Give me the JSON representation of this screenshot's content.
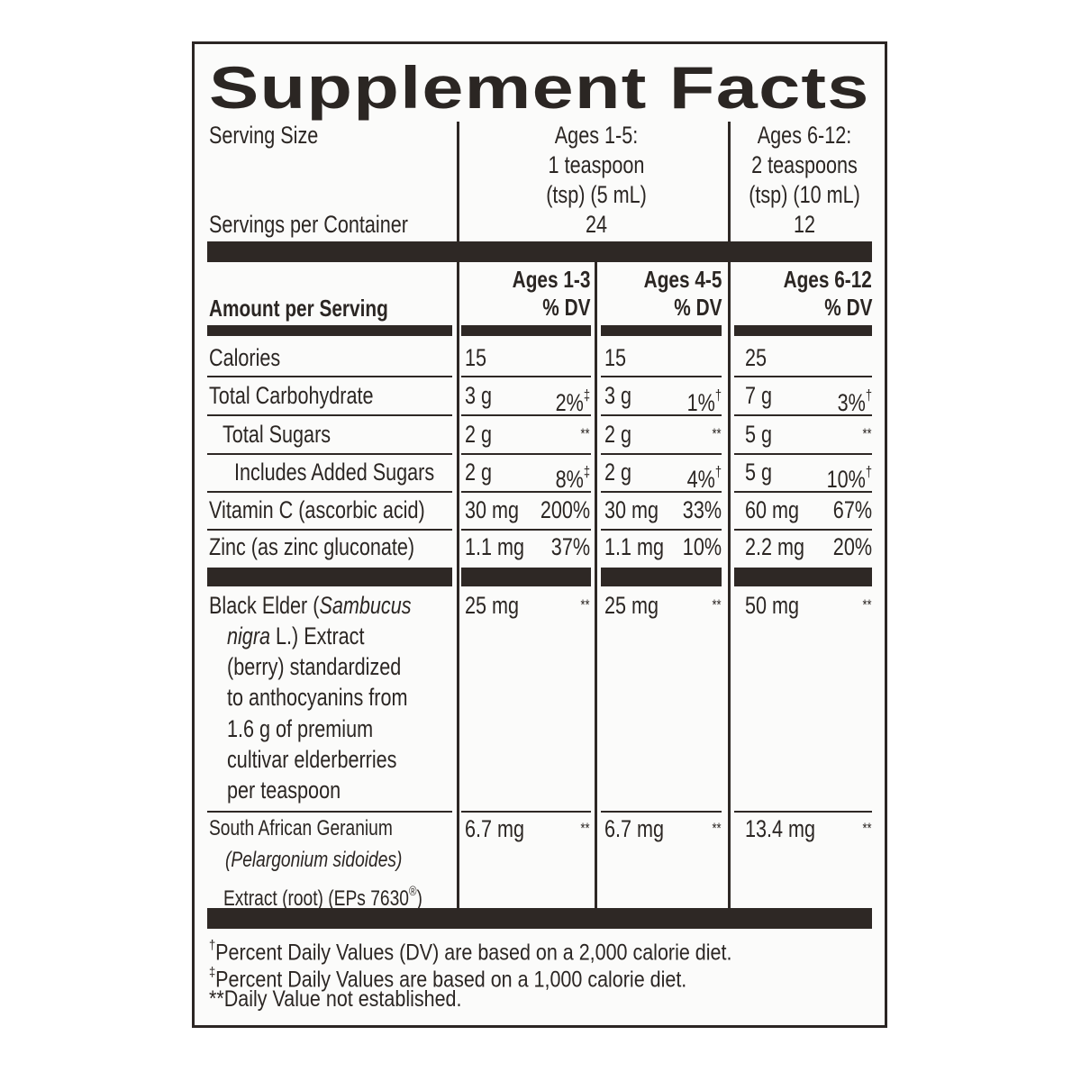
{
  "title": "Supplement Facts",
  "serving": {
    "size_label": "Serving Size",
    "servings_label": "Servings per Container",
    "columns": [
      {
        "size": [
          "Ages 1-5:",
          "1 teaspoon",
          "(tsp) (5 mL)"
        ],
        "servings": "24"
      },
      {
        "size": [
          "Ages 6-12:",
          "2 teaspoons",
          "(tsp) (10 mL)"
        ],
        "servings": "12"
      }
    ]
  },
  "amount_header": {
    "label": "Amount per Serving",
    "columns": [
      {
        "age": "Ages 1-3",
        "dv": "% DV"
      },
      {
        "age": "Ages 4-5",
        "dv": "% DV"
      },
      {
        "age": "Ages 6-12",
        "dv": "% DV"
      }
    ]
  },
  "rows": [
    {
      "name": [
        [
          {
            "text": "Calories"
          }
        ]
      ],
      "cells": [
        {
          "amount": "15"
        },
        {
          "amount": "15"
        },
        {
          "amount": "25"
        }
      ]
    },
    {
      "name": [
        [
          {
            "text": "Total Carbohydrate"
          }
        ]
      ],
      "cells": [
        {
          "amount": "3 g",
          "dv": "2%",
          "note": "‡"
        },
        {
          "amount": "3 g",
          "dv": "1%",
          "note": "†"
        },
        {
          "amount": "7 g",
          "dv": "3%",
          "note": "†"
        }
      ]
    },
    {
      "name": [
        [
          {
            "text": "Total Sugars"
          }
        ]
      ],
      "cells": [
        {
          "amount": "2 g",
          "dv": "**"
        },
        {
          "amount": "2 g",
          "dv": "**"
        },
        {
          "amount": "5 g",
          "dv": "**"
        }
      ]
    },
    {
      "name": [
        [
          {
            "text": "Includes Added Sugars"
          }
        ]
      ],
      "cells": [
        {
          "amount": "2 g",
          "dv": "8%",
          "note": "‡"
        },
        {
          "amount": "2 g",
          "dv": "4%",
          "note": "†"
        },
        {
          "amount": "5 g",
          "dv": "10%",
          "note": "†"
        }
      ]
    },
    {
      "name": [
        [
          {
            "text": "Vitamin C (ascorbic acid)"
          }
        ]
      ],
      "cells": [
        {
          "amount": "30 mg",
          "dv": "200%"
        },
        {
          "amount": "30 mg",
          "dv": "33%"
        },
        {
          "amount": "60 mg",
          "dv": "67%"
        }
      ]
    },
    {
      "name": [
        [
          {
            "text": "Zinc (as zinc gluconate)"
          }
        ]
      ],
      "cells": [
        {
          "amount": "1.1 mg",
          "dv": "37%"
        },
        {
          "amount": "1.1 mg",
          "dv": "10%"
        },
        {
          "amount": "2.2 mg",
          "dv": "20%"
        }
      ]
    },
    {
      "name": [
        [
          {
            "text": "Black Elder ("
          },
          {
            "text": "Sambucus",
            "italic": true
          }
        ],
        [
          {
            "text": "nigra",
            "italic": true
          },
          {
            "text": " L.) Extract"
          }
        ],
        [
          {
            "text": "(berry) standardized"
          }
        ],
        [
          {
            "text": "to anthocyanins from"
          }
        ],
        [
          {
            "text": "1.6 g of premium"
          }
        ],
        [
          {
            "text": "cultivar elderberries"
          }
        ],
        [
          {
            "text": "per teaspoon"
          }
        ]
      ],
      "cells": [
        {
          "amount": "25 mg",
          "dv": "**"
        },
        {
          "amount": "25 mg",
          "dv": "**"
        },
        {
          "amount": "50 mg",
          "dv": "**"
        }
      ]
    },
    {
      "name": [
        [
          {
            "text": "South African Geranium"
          }
        ],
        [
          {
            "text": "(Pelargonium sidoides)",
            "italic": true
          }
        ],
        [
          {
            "text": "Extract (root) (EPs 7630"
          },
          {
            "text": "®",
            "sup": true
          },
          {
            "text": ")"
          }
        ]
      ],
      "cells": [
        {
          "amount": "6.7 mg",
          "dv": "**"
        },
        {
          "amount": "6.7 mg",
          "dv": "**"
        },
        {
          "amount": "13.4 mg",
          "dv": "**"
        }
      ]
    }
  ],
  "footnotes": [
    {
      "mark": "†",
      "text": "Percent Daily Values (DV) are based on a 2,000 calorie diet."
    },
    {
      "mark": "‡",
      "text": "Percent Daily Values are based on a 1,000 calorie diet."
    },
    {
      "mark": "",
      "text": "**Daily Value not established."
    }
  ]
}
